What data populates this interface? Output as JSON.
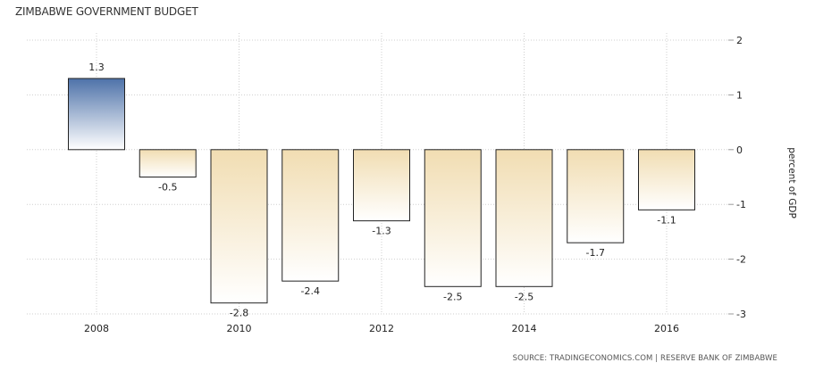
{
  "chart_data": {
    "type": "bar",
    "title": "ZIMBABWE GOVERNMENT BUDGET",
    "ylabel": "percent of GDP",
    "xlabel": "",
    "categories": [
      "2008",
      "2009",
      "2010",
      "2011",
      "2012",
      "2013",
      "2014",
      "2015",
      "2016"
    ],
    "values": [
      1.3,
      -0.5,
      -2.8,
      -2.4,
      -1.3,
      -2.5,
      -2.5,
      -1.7,
      -1.1
    ],
    "data_labels": [
      "1.3",
      "-0.5",
      "-2.8",
      "-2.4",
      "-1.3",
      "-2.5",
      "-2.5",
      "-1.7",
      "-1.1"
    ],
    "ylim": [
      -3,
      2
    ],
    "yticks": [
      2,
      1,
      0,
      -1,
      -2,
      -3
    ],
    "ytick_labels": [
      "2",
      "1",
      "0",
      "-1",
      "-2",
      "-3"
    ],
    "xticks": [
      "2008",
      "2010",
      "2012",
      "2014",
      "2016"
    ],
    "grid": true,
    "y_axis_side": "right",
    "colors": {
      "positive_top": "#4e72a9",
      "positive_bottom": "#ffffff",
      "negative_top": "#f1ddb2",
      "negative_bottom": "#ffffff",
      "bar_stroke": "#222222",
      "grid": "#cfcfcf"
    },
    "source": "SOURCE: TRADINGECONOMICS.COM | RESERVE BANK OF ZIMBABWE"
  }
}
